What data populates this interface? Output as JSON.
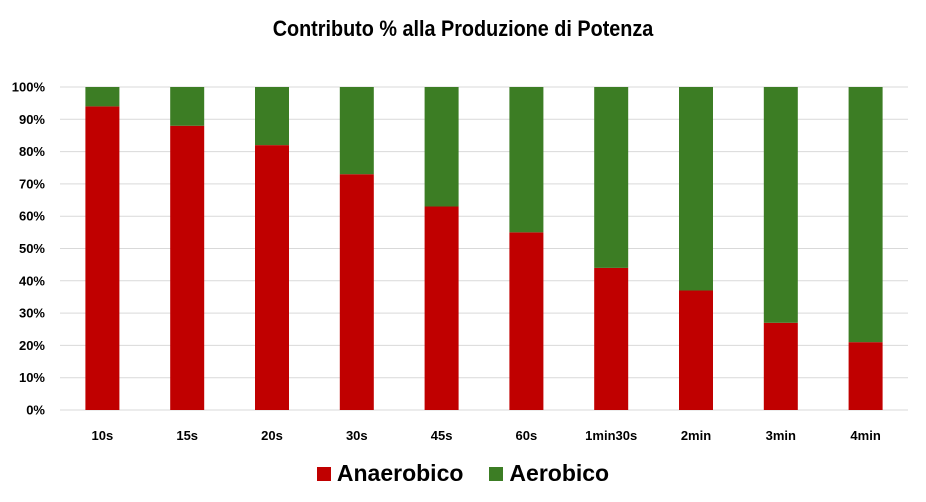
{
  "chart_data": {
    "type": "bar",
    "stacked": true,
    "title": "Contributo % alla Produzione di Potenza",
    "xlabel": "",
    "ylabel": "",
    "categories": [
      "10s",
      "15s",
      "20s",
      "30s",
      "45s",
      "60s",
      "1min30s",
      "2min",
      "3min",
      "4min"
    ],
    "series": [
      {
        "name": "Anaerobico",
        "color": "#C00000",
        "values": [
          94,
          88,
          82,
          73,
          63,
          55,
          44,
          37,
          27,
          21
        ]
      },
      {
        "name": "Aerobico",
        "color": "#3C7D24",
        "values": [
          6,
          12,
          18,
          27,
          37,
          45,
          56,
          63,
          73,
          79
        ]
      }
    ],
    "ylim": [
      0,
      100
    ],
    "yticks": [
      "0%",
      "10%",
      "20%",
      "30%",
      "40%",
      "50%",
      "60%",
      "70%",
      "80%",
      "90%",
      "100%"
    ],
    "grid": true,
    "legend": "bottom"
  }
}
